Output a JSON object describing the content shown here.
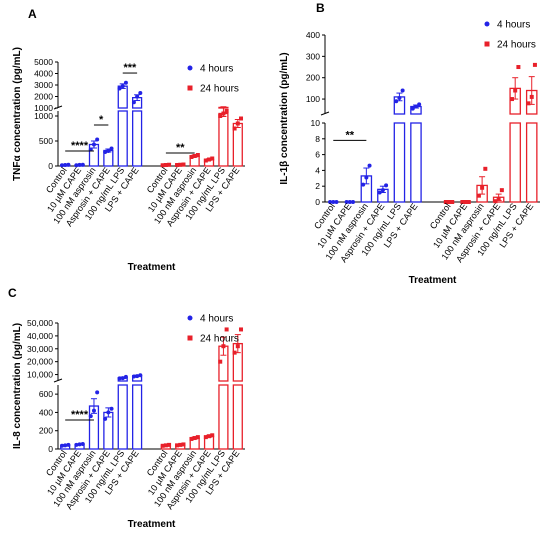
{
  "chart_data": [
    {
      "type": "bar",
      "panel": "A",
      "ylabel": "TNFα concentration (pg/mL)",
      "xlabel": "Treatment",
      "categories": [
        "Control",
        "10 µM CAPE",
        "100 nM asprosin",
        "Asprosin + CAPE",
        "100 ng/mL LPS",
        "LPS + CAPE"
      ],
      "yaxis_segments": [
        {
          "ylim": [
            0,
            1100
          ],
          "yticks": [
            0,
            500,
            1000
          ]
        },
        {
          "ylim": [
            1000,
            5000
          ],
          "yticks": [
            1000,
            2000,
            3000,
            4000,
            5000
          ]
        }
      ],
      "series": [
        {
          "name": "4 hours",
          "color": "#2323e6",
          "marker": "circle",
          "values": [
            20,
            20,
            430,
            310,
            2900,
            1900
          ],
          "errors": [
            5,
            5,
            70,
            30,
            200,
            250
          ],
          "points": [
            [
              15,
              20,
              25
            ],
            [
              15,
              22,
              25
            ],
            [
              330,
              430,
              530
            ],
            [
              280,
              300,
              350
            ],
            [
              2700,
              2900,
              3200
            ],
            [
              1500,
              2000,
              2300
            ]
          ]
        },
        {
          "name": "24 hours",
          "color": "#e8202a",
          "marker": "square",
          "values": [
            20,
            25,
            200,
            130,
            1050,
            850
          ],
          "errors": [
            5,
            5,
            20,
            15,
            60,
            80
          ],
          "points": [
            [
              15,
              20,
              25
            ],
            [
              20,
              25,
              30
            ],
            [
              180,
              200,
              220
            ],
            [
              110,
              130,
              150
            ],
            [
              1000,
              1050,
              1100
            ],
            [
              750,
              850,
              950
            ]
          ]
        }
      ],
      "annotations": [
        {
          "text": "****",
          "series": "4 hours",
          "from": "Control",
          "to": "100 nM asprosin",
          "y": 300
        },
        {
          "text": "*",
          "series": "4 hours",
          "from": "100 nM asprosin",
          "to": "Asprosin + CAPE",
          "y": 820
        },
        {
          "text": "***",
          "series": "4 hours",
          "from": "100 ng/mL LPS",
          "to": "LPS + CAPE",
          "y": 4040
        },
        {
          "text": "**",
          "series": "24 hours",
          "from": "Control",
          "to": "100 nM asprosin",
          "y": 260
        }
      ]
    },
    {
      "type": "bar",
      "panel": "B",
      "ylabel": "IL-1β concentration (pg/mL)",
      "xlabel": "Treatment",
      "categories": [
        "Control",
        "10 µM CAPE",
        "100 nM asprosin",
        "Asprosin + CAPE",
        "100 ng/mL LPS",
        "LPS + CAPE"
      ],
      "yaxis_segments": [
        {
          "ylim": [
            0,
            10
          ],
          "yticks": [
            0,
            2,
            4,
            6,
            8,
            10
          ]
        },
        {
          "ylim": [
            30,
            400
          ],
          "yticks": [
            100,
            200,
            300,
            400
          ]
        }
      ],
      "series": [
        {
          "name": "4 hours",
          "color": "#2323e6",
          "marker": "circle",
          "values": [
            0,
            0,
            3.3,
            1.6,
            110,
            65
          ],
          "errors": [
            0,
            0,
            1.0,
            0.4,
            18,
            7
          ],
          "points": [
            [
              0,
              0,
              0
            ],
            [
              0,
              0,
              0
            ],
            [
              2.2,
              3.1,
              4.6
            ],
            [
              1.2,
              1.5,
              2.1
            ],
            [
              90,
              105,
              140
            ],
            [
              55,
              65,
              75
            ]
          ]
        },
        {
          "name": "24 hours",
          "color": "#e8202a",
          "marker": "square",
          "values": [
            0,
            0,
            2.1,
            0.6,
            150,
            140
          ],
          "errors": [
            0,
            0,
            1.1,
            0.4,
            50,
            65
          ],
          "points": [
            [
              0,
              0,
              0
            ],
            [
              0,
              0,
              0
            ],
            [
              0.8,
              1.8,
              4.2
            ],
            [
              0.1,
              0.4,
              1.5
            ],
            [
              100,
              140,
              250
            ],
            [
              80,
              110,
              260
            ]
          ]
        }
      ],
      "annotations": [
        {
          "text": "**",
          "series": "4 hours",
          "from": "Control",
          "to": "100 nM asprosin",
          "y": 7.8
        }
      ]
    },
    {
      "type": "bar",
      "panel": "C",
      "ylabel": "IL-8 concentration (pg/mL)",
      "xlabel": "Treatment",
      "categories": [
        "Control",
        "10 µM CAPE",
        "100 nM asprosin",
        "Asprosin + CAPE",
        "100 ng/mL LPS",
        "LPS + CAPE"
      ],
      "yaxis_segments": [
        {
          "ylim": [
            0,
            700
          ],
          "yticks": [
            0,
            200,
            400,
            600
          ]
        },
        {
          "ylim": [
            5000,
            50000
          ],
          "yticks": [
            {
              "value": 10000,
              "label": "10,000"
            },
            {
              "value": 20000,
              "label": "20,000"
            },
            {
              "value": 30000,
              "label": "30,000"
            },
            {
              "value": 40000,
              "label": "40,000"
            },
            {
              "value": 50000,
              "label": "50,000"
            }
          ]
        }
      ],
      "series": [
        {
          "name": "4 hours",
          "color": "#2323e6",
          "marker": "circle",
          "values": [
            40,
            50,
            470,
            400,
            7500,
            9000
          ],
          "errors": [
            5,
            5,
            80,
            50,
            600,
            500
          ],
          "points": [
            [
              35,
              40,
              45
            ],
            [
              45,
              50,
              55
            ],
            [
              360,
              420,
              620
            ],
            [
              330,
              400,
              440
            ],
            [
              7000,
              7200,
              8200
            ],
            [
              8500,
              8800,
              9500
            ]
          ]
        },
        {
          "name": "24 hours",
          "color": "#e8202a",
          "marker": "square",
          "values": [
            40,
            45,
            120,
            140,
            32000,
            34000
          ],
          "errors": [
            5,
            5,
            10,
            10,
            7000,
            7000
          ],
          "points": [
            [
              35,
              40,
              45
            ],
            [
              40,
              45,
              50
            ],
            [
              110,
              120,
              130
            ],
            [
              130,
              140,
              150
            ],
            [
              20000,
              32000,
              45000
            ],
            [
              27000,
              32000,
              45000
            ]
          ]
        }
      ],
      "annotations": [
        {
          "text": "****",
          "series": "4 hours",
          "from": "Control",
          "to": "100 nM asprosin",
          "y": 317
        }
      ]
    }
  ]
}
